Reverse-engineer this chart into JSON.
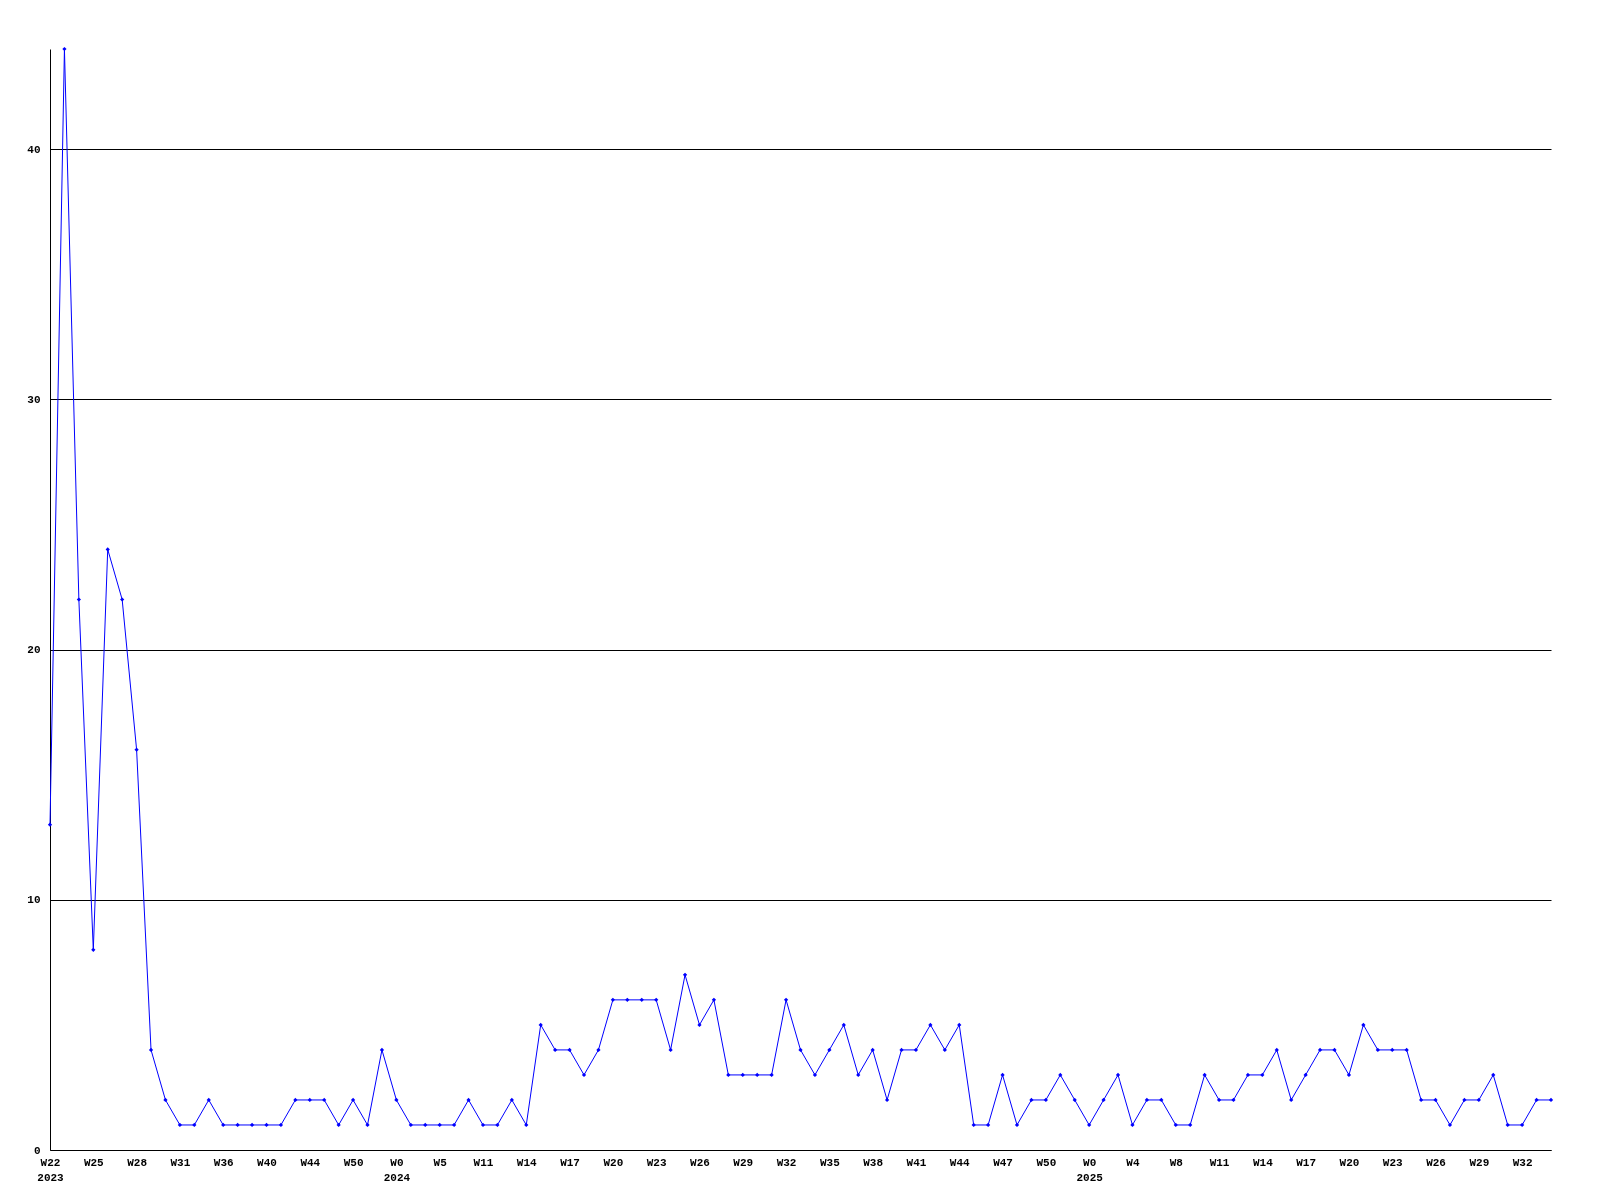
{
  "chart_data": {
    "type": "line",
    "categories": [
      "W22\n2023",
      null,
      null,
      "W25",
      null,
      null,
      "W28",
      null,
      null,
      "W31",
      null,
      null,
      "W36",
      null,
      null,
      "W40",
      null,
      null,
      "W44",
      null,
      null,
      "W50",
      null,
      null,
      "W0\n2024",
      null,
      null,
      "W5",
      null,
      null,
      "W11",
      null,
      null,
      "W14",
      null,
      null,
      "W17",
      null,
      null,
      "W20",
      null,
      null,
      "W23",
      null,
      null,
      "W26",
      null,
      null,
      "W29",
      null,
      null,
      "W32",
      null,
      null,
      "W35",
      null,
      null,
      "W38",
      null,
      null,
      "W41",
      null,
      null,
      "W44",
      null,
      null,
      "W47",
      null,
      null,
      "W50",
      null,
      null,
      "W0\n2025",
      null,
      null,
      "W4",
      null,
      null,
      "W8",
      null,
      null,
      "W11",
      null,
      null,
      "W14",
      null,
      null,
      "W17",
      null,
      null,
      "W20",
      null,
      null,
      "W23",
      null,
      null,
      "W26",
      null,
      null,
      "W29",
      null,
      null,
      "W32",
      null,
      null
    ],
    "series": [
      {
        "color": "#0000ff",
        "values": [
          13,
          44,
          22,
          8,
          24,
          22,
          16,
          4,
          2,
          1,
          1,
          2,
          1,
          1,
          1,
          1,
          1,
          2,
          2,
          2,
          1,
          2,
          1,
          4,
          2,
          1,
          1,
          1,
          1,
          2,
          1,
          1,
          2,
          1,
          5,
          4,
          4,
          3,
          4,
          6,
          6,
          6,
          6,
          4,
          7,
          5,
          6,
          3,
          3,
          3,
          3,
          6,
          4,
          3,
          4,
          5,
          3,
          4,
          2,
          4,
          4,
          5,
          4,
          5,
          1,
          1,
          3,
          1,
          2,
          2,
          3,
          2,
          1,
          2,
          3,
          1,
          2,
          2,
          1,
          1,
          3,
          2,
          2,
          3,
          3,
          4,
          2,
          3,
          4,
          4,
          3,
          5,
          4,
          4,
          4,
          2,
          2,
          1,
          2,
          2,
          3,
          1,
          1,
          2,
          2
        ]
      }
    ],
    "ylim": [
      0,
      44
    ],
    "yticks": [
      0,
      10,
      20,
      30,
      40
    ],
    "grid": "y",
    "legend": false,
    "marker": "diamond",
    "line_style": "solid"
  }
}
